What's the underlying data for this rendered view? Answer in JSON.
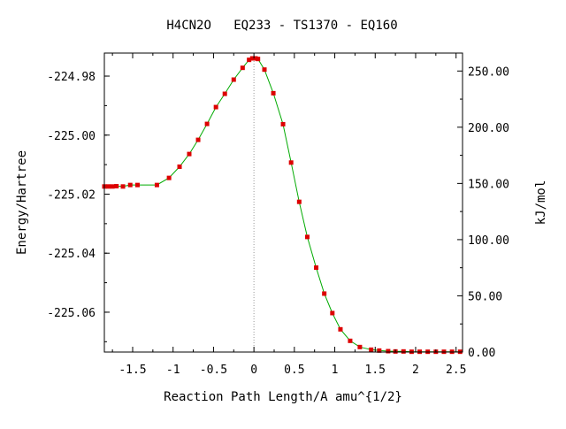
{
  "chart_data": {
    "type": "line",
    "title": "H4CN2O   EQ233 - TS1370 - EQ160",
    "xlabel": "Reaction Path Length/A amu^{1/2}",
    "ylabel": "Energy/Hartree",
    "y2label": "kJ/mol",
    "xlim": [
      -1.85,
      2.58
    ],
    "ylim": [
      -225.0735,
      -224.9722
    ],
    "xticks": [
      "-1.5",
      "-1",
      "-0.5",
      "0",
      "0.5",
      "1",
      "1.5",
      "2",
      "2.5"
    ],
    "xtick_values": [
      -1.5,
      -1,
      -0.5,
      0,
      0.5,
      1,
      1.5,
      2,
      2.5
    ],
    "yticks": [
      "-224.98",
      "-225.00",
      "-225.02",
      "-225.04",
      "-225.06"
    ],
    "ytick_values": [
      -224.98,
      -225.0,
      -225.02,
      -225.04,
      -225.06
    ],
    "y2ticks": [
      "250.00",
      "200.00",
      "150.00",
      "100.00",
      "50.00",
      "0.00"
    ],
    "y2tick_values": [
      250,
      200,
      150,
      100,
      50,
      0
    ],
    "y2_zero_energy": -225.0735,
    "hartree_to_kjmol": 2625.5,
    "ts_x": 0,
    "line_color": "#00aa00",
    "marker_color": "#dd0000",
    "series": [
      {
        "x": [
          -1.85,
          -1.8,
          -1.75,
          -1.7,
          -1.62,
          -1.53,
          -1.44,
          -1.2,
          -1.05,
          -0.92,
          -0.8,
          -0.69,
          -0.58,
          -0.47,
          -0.36,
          -0.25,
          -0.14,
          -0.06,
          -0.02,
          0.0,
          0.02,
          0.05,
          0.13,
          0.24,
          0.36,
          0.46,
          0.56,
          0.66,
          0.77,
          0.87,
          0.97,
          1.07,
          1.19,
          1.31,
          1.45,
          1.55,
          1.66,
          1.75,
          1.85,
          1.95,
          2.05,
          2.15,
          2.25,
          2.35,
          2.45,
          2.55
        ],
        "y": [
          -225.0174,
          -225.0174,
          -225.0174,
          -225.0173,
          -225.0174,
          -225.0169,
          -225.0169,
          -225.0169,
          -225.0145,
          -225.0107,
          -225.0064,
          -225.0016,
          -224.9962,
          -224.9905,
          -224.986,
          -224.9812,
          -224.9772,
          -224.9745,
          -224.974,
          -224.974,
          -224.974,
          -224.9742,
          -224.9778,
          -224.9858,
          -224.9963,
          -225.0093,
          -225.0226,
          -225.0345,
          -225.0449,
          -225.0537,
          -225.0603,
          -225.0658,
          -225.0697,
          -225.0718,
          -225.0727,
          -225.073,
          -225.0732,
          -225.0733,
          -225.0733,
          -225.0734,
          -225.0734,
          -225.0734,
          -225.0734,
          -225.0734,
          -225.0734,
          -225.0734
        ]
      }
    ]
  }
}
